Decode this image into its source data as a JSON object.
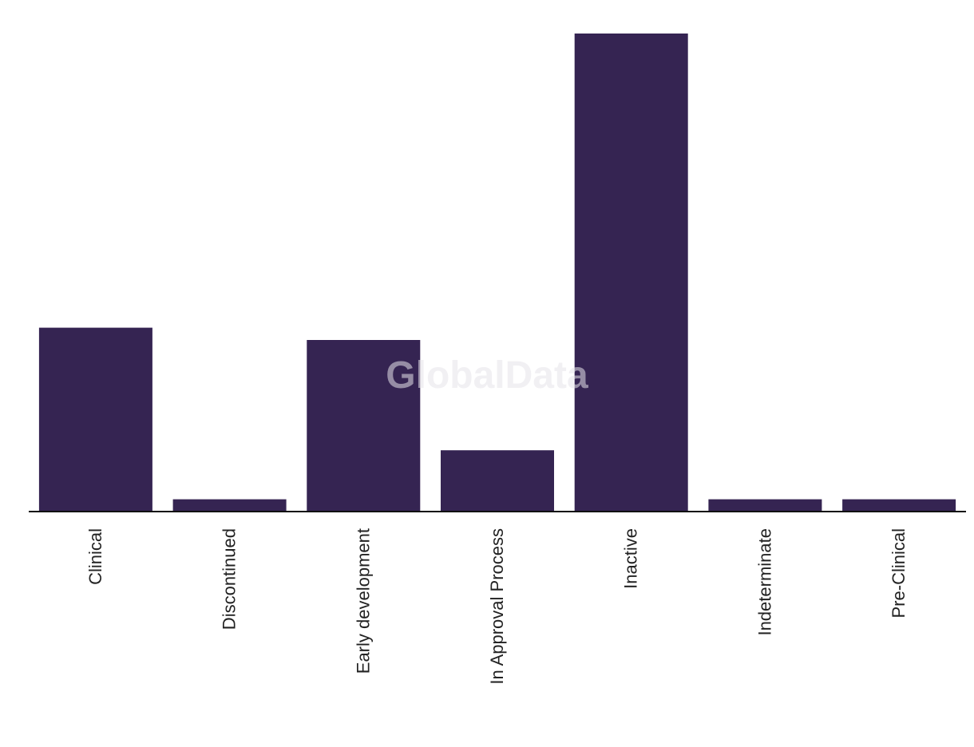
{
  "watermark": "GlobalData",
  "colors": {
    "bar": "#352452",
    "axis": "#111111",
    "label": "#222222",
    "background": "#ffffff"
  },
  "chart_data": {
    "type": "bar",
    "title": "",
    "xlabel": "",
    "ylabel": "",
    "categories": [
      "Clinical",
      "Discontinued",
      "Early development",
      "In Approval Process",
      "Inactive",
      "Indeterminate",
      "Pre-Clinical"
    ],
    "values": [
      15,
      1,
      14,
      5,
      39,
      1,
      1
    ],
    "ylim": [
      0,
      39
    ],
    "grid": false,
    "legend": "none",
    "y_axis_visible": false,
    "label_rotation": -90
  }
}
